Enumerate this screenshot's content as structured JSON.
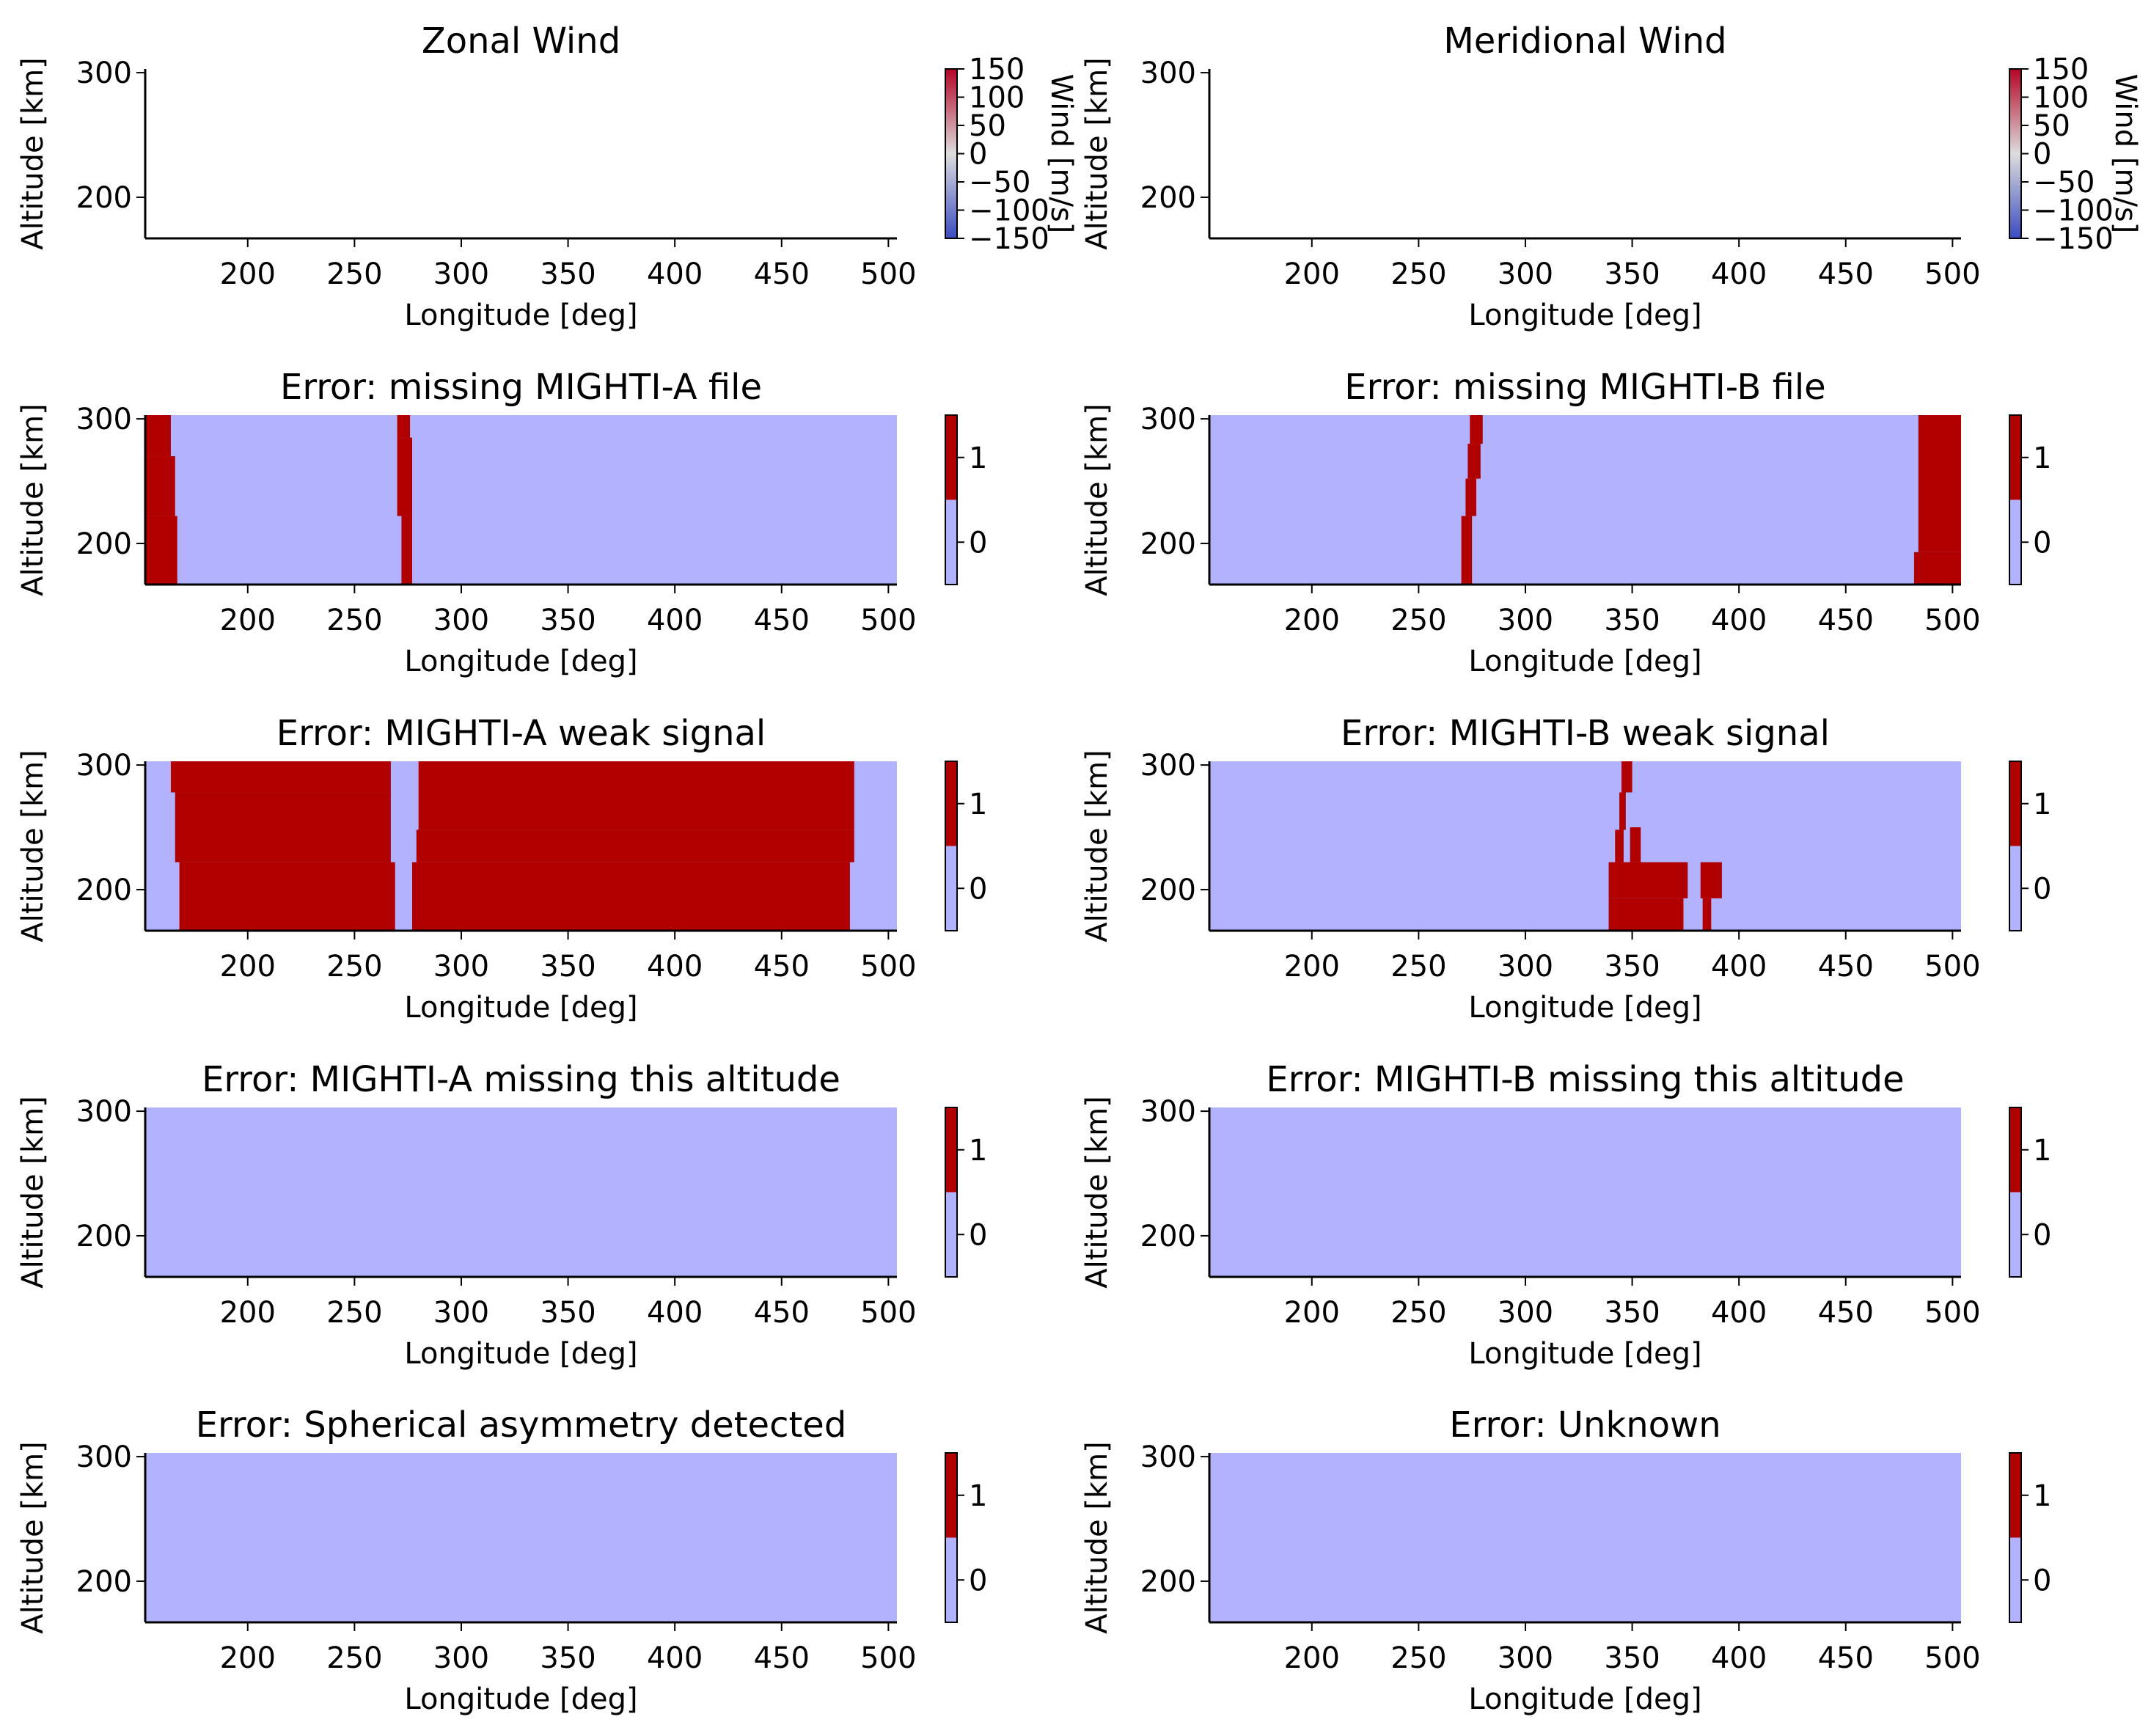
{
  "colors": {
    "flag_zero": "#b2b2ff",
    "flag_one": "#b00000",
    "wind_low": "#3b4cc0",
    "wind_mid": "#dddddd",
    "wind_high": "#b40426"
  },
  "chart_data": [
    {
      "type": "heatmap",
      "title": "Zonal Wind",
      "xlabel": "Longitude [deg]",
      "ylabel": "Altitude [km]",
      "xlim": [
        152,
        504
      ],
      "ylim": [
        167,
        303
      ],
      "xticks": [
        "200",
        "250",
        "300",
        "350",
        "400",
        "450",
        "500"
      ],
      "yticks": [
        "200",
        "300"
      ],
      "colorbar": {
        "label": "Wind [m/s]",
        "ticks": [
          "150",
          "100",
          "50",
          "0",
          "−50",
          "−100",
          "−150"
        ],
        "range": [
          -150,
          150
        ],
        "colormap": "coolwarm"
      },
      "flag_regions": []
    },
    {
      "type": "heatmap",
      "title": "Meridional Wind",
      "xlabel": "Longitude [deg]",
      "ylabel": "Altitude [km]",
      "xlim": [
        152,
        504
      ],
      "ylim": [
        167,
        303
      ],
      "xticks": [
        "200",
        "250",
        "300",
        "350",
        "400",
        "450",
        "500"
      ],
      "yticks": [
        "200",
        "300"
      ],
      "colorbar": {
        "label": "Wind [m/s]",
        "ticks": [
          "150",
          "100",
          "50",
          "0",
          "−50",
          "−100",
          "−150"
        ],
        "range": [
          -150,
          150
        ],
        "colormap": "coolwarm"
      },
      "flag_regions": []
    },
    {
      "type": "heatmap",
      "title": "Error: missing MIGHTI-A file",
      "xlabel": "Longitude [deg]",
      "ylabel": "Altitude [km]",
      "xlim": [
        152,
        504
      ],
      "ylim": [
        167,
        303
      ],
      "xticks": [
        "200",
        "250",
        "300",
        "350",
        "400",
        "450",
        "500"
      ],
      "yticks": [
        "200",
        "300"
      ],
      "colorbar": {
        "ticks": [
          "1",
          "0"
        ],
        "range": [
          -0.5,
          1.5
        ]
      },
      "flag_regions": [
        {
          "lon": [
            152,
            164
          ],
          "alt": [
            270,
            303
          ]
        },
        {
          "lon": [
            152,
            166
          ],
          "alt": [
            222,
            270
          ]
        },
        {
          "lon": [
            152,
            167
          ],
          "alt": [
            167,
            222
          ]
        },
        {
          "lon": [
            270,
            276
          ],
          "alt": [
            285,
            303
          ]
        },
        {
          "lon": [
            270,
            277
          ],
          "alt": [
            222,
            285
          ]
        },
        {
          "lon": [
            272,
            277
          ],
          "alt": [
            167,
            222
          ]
        }
      ]
    },
    {
      "type": "heatmap",
      "title": "Error: missing MIGHTI-B file",
      "xlabel": "Longitude [deg]",
      "ylabel": "Altitude [km]",
      "xlim": [
        152,
        504
      ],
      "ylim": [
        167,
        303
      ],
      "xticks": [
        "200",
        "250",
        "300",
        "350",
        "400",
        "450",
        "500"
      ],
      "yticks": [
        "200",
        "300"
      ],
      "colorbar": {
        "ticks": [
          "1",
          "0"
        ],
        "range": [
          -0.5,
          1.5
        ]
      },
      "flag_regions": [
        {
          "lon": [
            274,
            280
          ],
          "alt": [
            280,
            303
          ]
        },
        {
          "lon": [
            273,
            279
          ],
          "alt": [
            252,
            280
          ]
        },
        {
          "lon": [
            272,
            277
          ],
          "alt": [
            222,
            252
          ]
        },
        {
          "lon": [
            270,
            275
          ],
          "alt": [
            167,
            222
          ]
        },
        {
          "lon": [
            484,
            504
          ],
          "alt": [
            193,
            303
          ]
        },
        {
          "lon": [
            482,
            504
          ],
          "alt": [
            167,
            193
          ]
        }
      ]
    },
    {
      "type": "heatmap",
      "title": "Error: MIGHTI-A weak signal",
      "xlabel": "Longitude [deg]",
      "ylabel": "Altitude [km]",
      "xlim": [
        152,
        504
      ],
      "ylim": [
        167,
        303
      ],
      "xticks": [
        "200",
        "250",
        "300",
        "350",
        "400",
        "450",
        "500"
      ],
      "yticks": [
        "200",
        "300"
      ],
      "colorbar": {
        "ticks": [
          "1",
          "0"
        ],
        "range": [
          -0.5,
          1.5
        ]
      },
      "flag_regions": [
        {
          "lon": [
            164,
            267
          ],
          "alt": [
            278,
            303
          ]
        },
        {
          "lon": [
            166,
            267
          ],
          "alt": [
            222,
            278
          ]
        },
        {
          "lon": [
            168,
            269
          ],
          "alt": [
            167,
            222
          ]
        },
        {
          "lon": [
            280,
            484
          ],
          "alt": [
            248,
            303
          ]
        },
        {
          "lon": [
            279,
            484
          ],
          "alt": [
            222,
            248
          ]
        },
        {
          "lon": [
            277,
            482
          ],
          "alt": [
            167,
            222
          ]
        }
      ]
    },
    {
      "type": "heatmap",
      "title": "Error: MIGHTI-B weak signal",
      "xlabel": "Longitude [deg]",
      "ylabel": "Altitude [km]",
      "xlim": [
        152,
        504
      ],
      "ylim": [
        167,
        303
      ],
      "xticks": [
        "200",
        "250",
        "300",
        "350",
        "400",
        "450",
        "500"
      ],
      "yticks": [
        "200",
        "300"
      ],
      "colorbar": {
        "ticks": [
          "1",
          "0"
        ],
        "range": [
          -0.5,
          1.5
        ]
      },
      "flag_regions": [
        {
          "lon": [
            345,
            350
          ],
          "alt": [
            278,
            303
          ]
        },
        {
          "lon": [
            344,
            347
          ],
          "alt": [
            248,
            278
          ]
        },
        {
          "lon": [
            342,
            346
          ],
          "alt": [
            222,
            248
          ]
        },
        {
          "lon": [
            349,
            354
          ],
          "alt": [
            222,
            250
          ]
        },
        {
          "lon": [
            339,
            376
          ],
          "alt": [
            193,
            222
          ]
        },
        {
          "lon": [
            339,
            374
          ],
          "alt": [
            167,
            193
          ]
        },
        {
          "lon": [
            382,
            392
          ],
          "alt": [
            193,
            222
          ]
        },
        {
          "lon": [
            383,
            387
          ],
          "alt": [
            167,
            193
          ]
        }
      ]
    },
    {
      "type": "heatmap",
      "title": "Error: MIGHTI-A missing this altitude",
      "xlabel": "Longitude [deg]",
      "ylabel": "Altitude [km]",
      "xlim": [
        152,
        504
      ],
      "ylim": [
        167,
        303
      ],
      "xticks": [
        "200",
        "250",
        "300",
        "350",
        "400",
        "450",
        "500"
      ],
      "yticks": [
        "200",
        "300"
      ],
      "colorbar": {
        "ticks": [
          "1",
          "0"
        ],
        "range": [
          -0.5,
          1.5
        ]
      },
      "flag_regions": []
    },
    {
      "type": "heatmap",
      "title": "Error: MIGHTI-B missing this altitude",
      "xlabel": "Longitude [deg]",
      "ylabel": "Altitude [km]",
      "xlim": [
        152,
        504
      ],
      "ylim": [
        167,
        303
      ],
      "xticks": [
        "200",
        "250",
        "300",
        "350",
        "400",
        "450",
        "500"
      ],
      "yticks": [
        "200",
        "300"
      ],
      "colorbar": {
        "ticks": [
          "1",
          "0"
        ],
        "range": [
          -0.5,
          1.5
        ]
      },
      "flag_regions": []
    },
    {
      "type": "heatmap",
      "title": "Error: Spherical asymmetry detected",
      "xlabel": "Longitude [deg]",
      "ylabel": "Altitude [km]",
      "xlim": [
        152,
        504
      ],
      "ylim": [
        167,
        303
      ],
      "xticks": [
        "200",
        "250",
        "300",
        "350",
        "400",
        "450",
        "500"
      ],
      "yticks": [
        "200",
        "300"
      ],
      "colorbar": {
        "ticks": [
          "1",
          "0"
        ],
        "range": [
          -0.5,
          1.5
        ]
      },
      "flag_regions": []
    },
    {
      "type": "heatmap",
      "title": "Error: Unknown",
      "xlabel": "Longitude [deg]",
      "ylabel": "Altitude [km]",
      "xlim": [
        152,
        504
      ],
      "ylim": [
        167,
        303
      ],
      "xticks": [
        "200",
        "250",
        "300",
        "350",
        "400",
        "450",
        "500"
      ],
      "yticks": [
        "200",
        "300"
      ],
      "colorbar": {
        "ticks": [
          "1",
          "0"
        ],
        "range": [
          -0.5,
          1.5
        ]
      },
      "flag_regions": []
    }
  ]
}
